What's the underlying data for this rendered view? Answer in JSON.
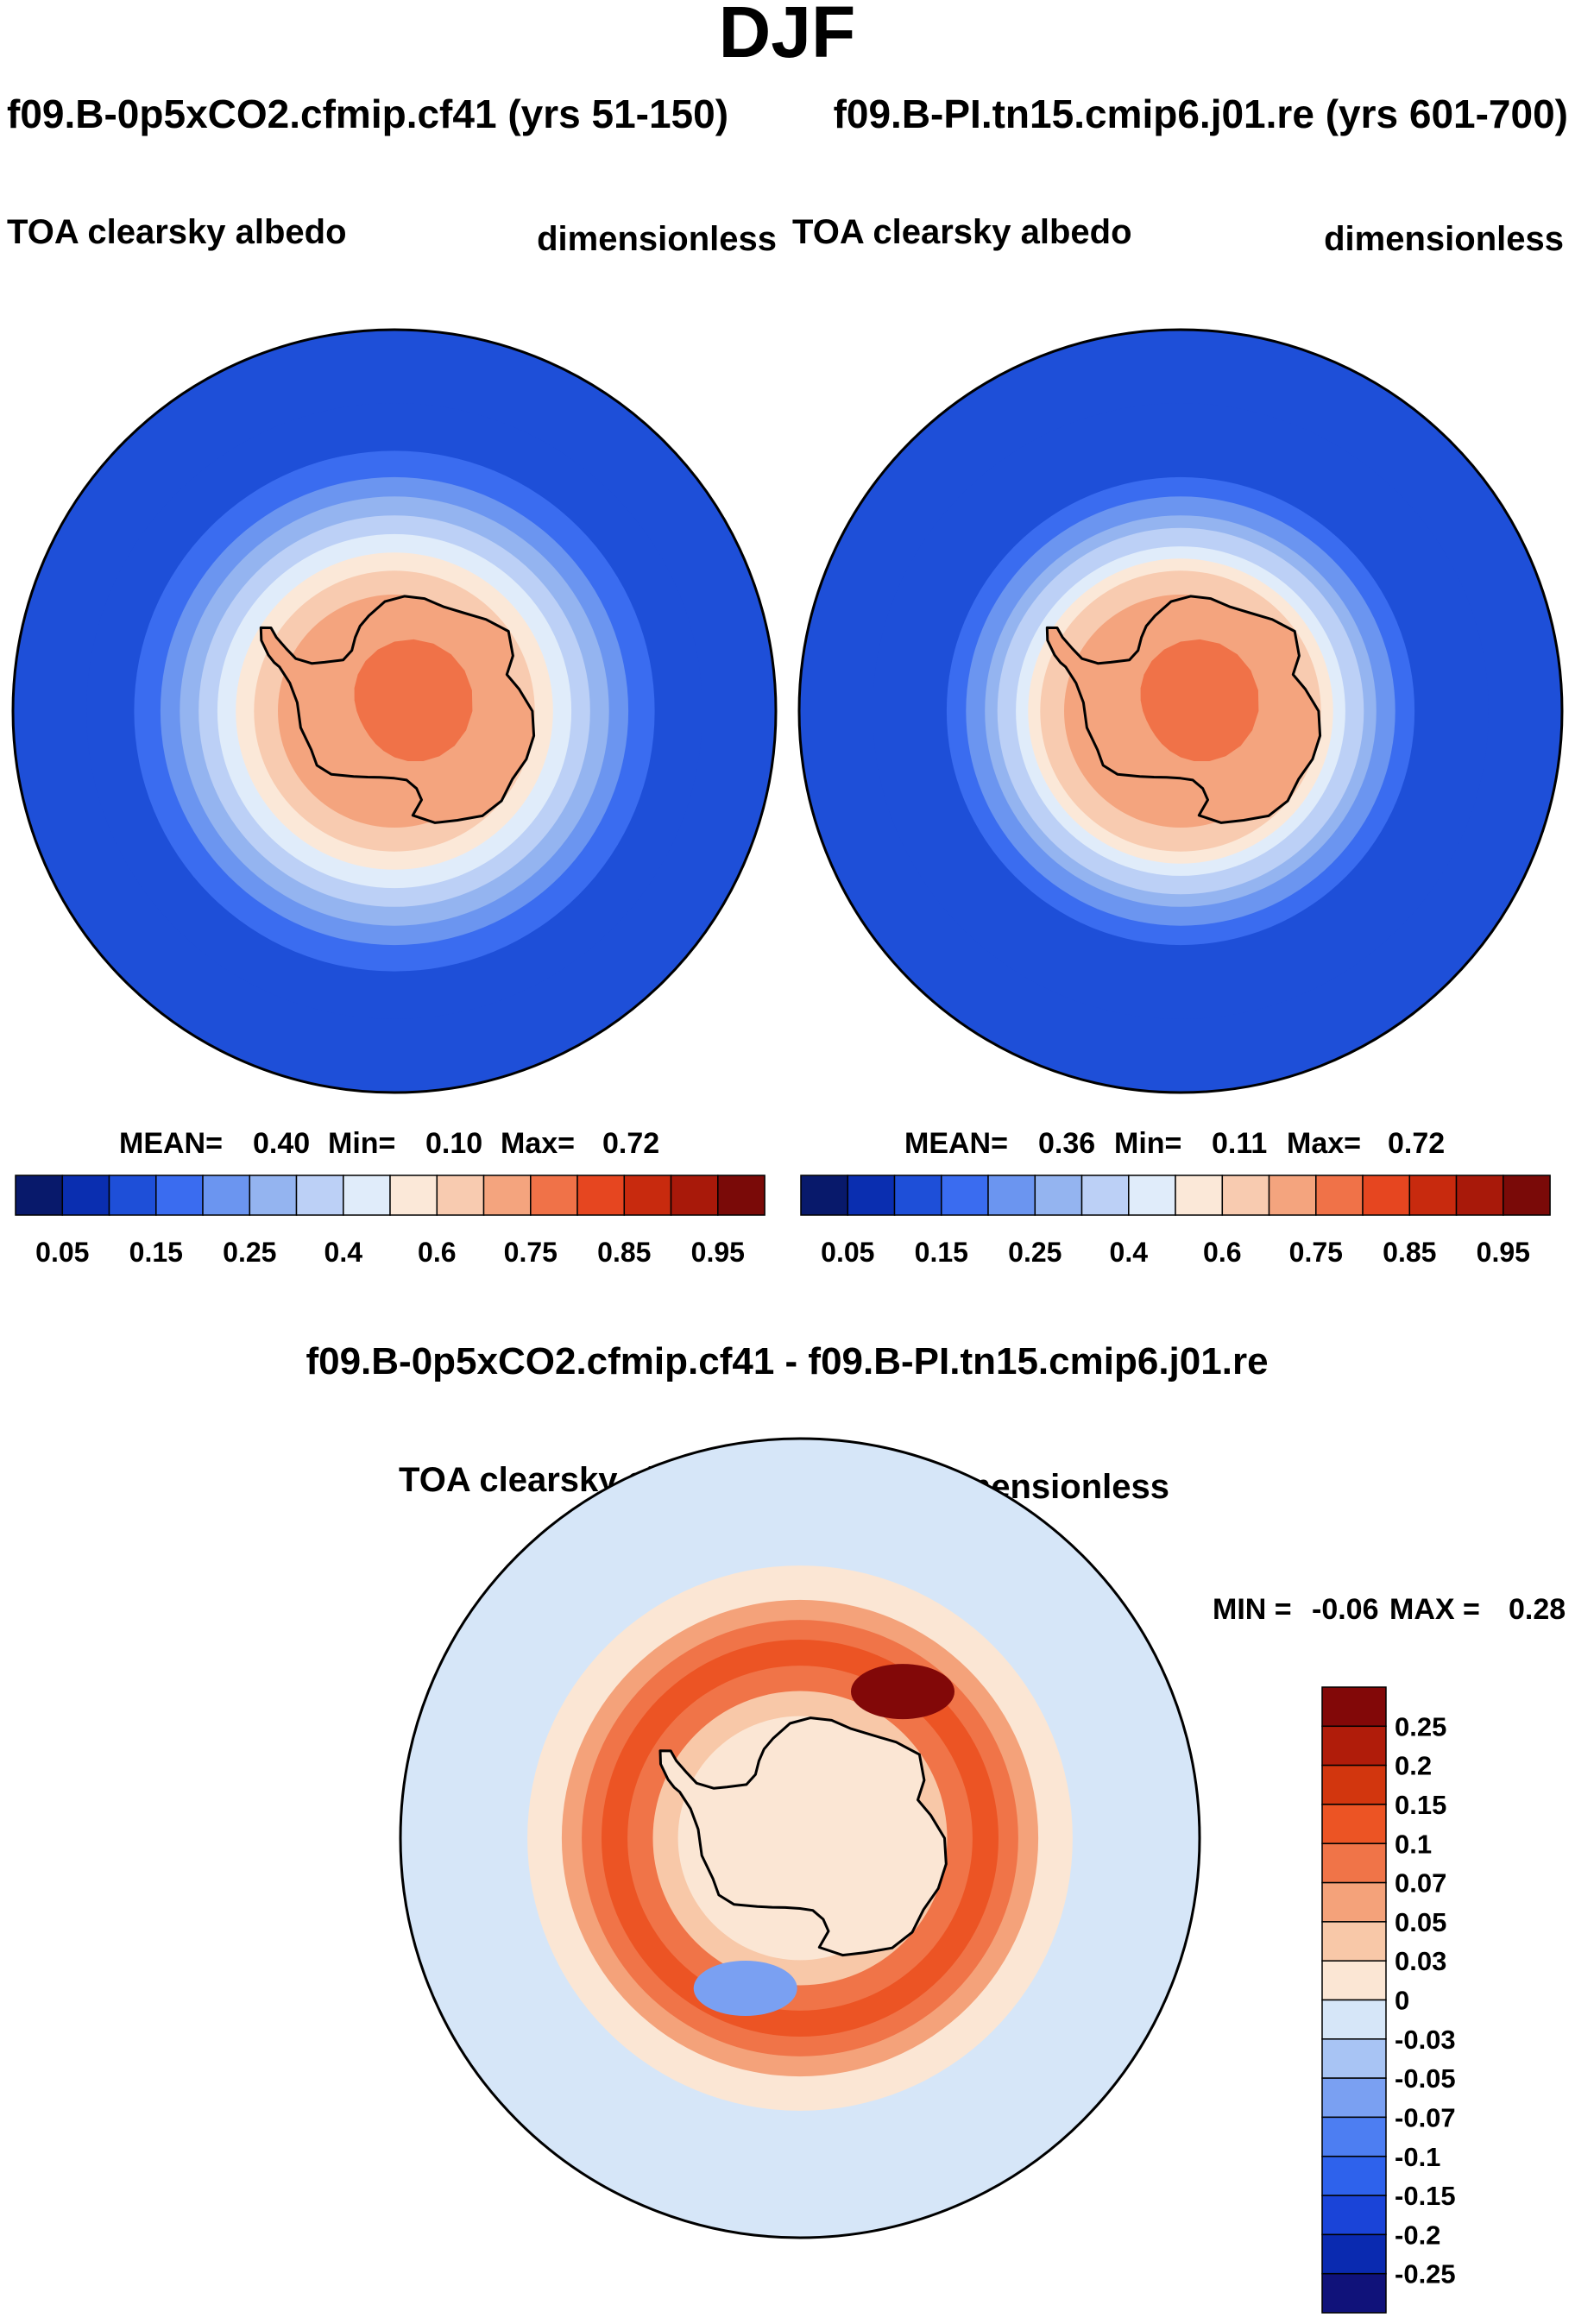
{
  "figure": {
    "title": "DJF",
    "header_left": "f09.B-0p5xCO2.cfmip.cf41 (yrs 51-150)",
    "header_right": "f09.B-PI.tn15.cmip6.j01.re (yrs 601-700)",
    "diff_title": "f09.B-0p5xCO2.cfmip.cf41 - f09.B-PI.tn15.cmip6.j01.re"
  },
  "colors": {
    "full_field": [
      "#08196b",
      "#0a2eb0",
      "#1e4fd8",
      "#3a6cf0",
      "#6b95f0",
      "#94b4f0",
      "#bcd0f6",
      "#e0ecfa",
      "#fbe8d8",
      "#f8cbb0",
      "#f4a47e",
      "#f07248",
      "#e64620",
      "#c82a0e",
      "#a8190a",
      "#7a0a08"
    ],
    "difference": [
      "#10127a",
      "#0a2ab0",
      "#1a44d8",
      "#2e62ec",
      "#4d7ef2",
      "#7aa0f2",
      "#a8c4f4",
      "#d6e6f8",
      "#fbe6d4",
      "#f8c8a8",
      "#f4a27a",
      "#f07448",
      "#ec5424",
      "#d2360e",
      "#b01c0a",
      "#820808"
    ]
  },
  "chart_data": [
    {
      "type": "heatmap",
      "name": "panel-0p5xCO2",
      "title": "f09.B-0p5xCO2.cfmip.cf41 (yrs 51-150)",
      "variable": "TOA clearsky albedo",
      "units": "dimensionless",
      "projection": "south polar stereographic",
      "stats": {
        "mean_label": "MEAN=",
        "mean": "0.40",
        "min_label": "Min=",
        "min": "0.10",
        "max_label": "Max=",
        "max": "0.72"
      },
      "levels": [
        0.05,
        0.1,
        0.15,
        0.2,
        0.25,
        0.3,
        0.35,
        0.4,
        0.5,
        0.6,
        0.7,
        0.75,
        0.8,
        0.85,
        0.9,
        0.95
      ],
      "tick_labels": [
        "0.05",
        "0.15",
        "0.25",
        "0.4",
        "0.6",
        "0.75",
        "0.85",
        "0.95"
      ],
      "bands": [
        {
          "lat": -40,
          "value": 0.12
        },
        {
          "lat": -47,
          "value": 0.17
        },
        {
          "lat": -51,
          "value": 0.22
        },
        {
          "lat": -54,
          "value": 0.27
        },
        {
          "lat": -57,
          "value": 0.32
        },
        {
          "lat": -60,
          "value": 0.37
        },
        {
          "lat": -63,
          "value": 0.45
        },
        {
          "lat": -66,
          "value": 0.55
        },
        {
          "lat": -70,
          "value": 0.62
        }
      ]
    },
    {
      "type": "heatmap",
      "name": "panel-PI",
      "title": "f09.B-PI.tn15.cmip6.j01.re (yrs 601-700)",
      "variable": "TOA clearsky albedo",
      "units": "dimensionless",
      "projection": "south polar stereographic",
      "stats": {
        "mean_label": "MEAN=",
        "mean": "0.36",
        "min_label": "Min=",
        "min": "0.11",
        "max_label": "Max=",
        "max": "0.72"
      },
      "levels": [
        0.05,
        0.1,
        0.15,
        0.2,
        0.25,
        0.3,
        0.35,
        0.4,
        0.5,
        0.6,
        0.7,
        0.75,
        0.8,
        0.85,
        0.9,
        0.95
      ],
      "tick_labels": [
        "0.05",
        "0.15",
        "0.25",
        "0.4",
        "0.6",
        "0.75",
        "0.85",
        "0.95"
      ],
      "bands": [
        {
          "lat": -40,
          "value": 0.12
        },
        {
          "lat": -51,
          "value": 0.17
        },
        {
          "lat": -54,
          "value": 0.22
        },
        {
          "lat": -57,
          "value": 0.27
        },
        {
          "lat": -59,
          "value": 0.32
        },
        {
          "lat": -62,
          "value": 0.37
        },
        {
          "lat": -64,
          "value": 0.45
        },
        {
          "lat": -66,
          "value": 0.55
        },
        {
          "lat": -70,
          "value": 0.62
        }
      ]
    },
    {
      "type": "heatmap",
      "name": "panel-difference",
      "title": "f09.B-0p5xCO2.cfmip.cf41 - f09.B-PI.tn15.cmip6.j01.re",
      "variable": "TOA clearsky albedo",
      "units": "dimensionless",
      "projection": "south polar stereographic",
      "stats": {
        "min_label": "MIN =",
        "min": "-0.06",
        "max_label": "MAX =",
        "max": "0.28"
      },
      "tick_labels": [
        "0.25",
        "0.2",
        "0.15",
        "0.1",
        "0.07",
        "0.05",
        "0.03",
        "0",
        "-0.03",
        "-0.05",
        "-0.07",
        "-0.1",
        "-0.15",
        "-0.2",
        "-0.25"
      ],
      "bands": [
        {
          "lat": -40,
          "value": -0.02
        },
        {
          "lat": -47,
          "value": 0.02
        },
        {
          "lat": -52,
          "value": 0.06
        },
        {
          "lat": -55,
          "value": 0.09
        },
        {
          "lat": -58,
          "value": 0.12
        },
        {
          "lat": -62,
          "value": 0.09
        },
        {
          "lat": -66,
          "value": 0.04
        },
        {
          "lat": -70,
          "value": 0.02
        }
      ],
      "features": [
        {
          "kind": "max",
          "lon": 35,
          "lat": -61,
          "value": 0.28
        },
        {
          "kind": "min",
          "lon": -160,
          "lat": -64,
          "value": -0.06
        }
      ]
    }
  ],
  "coastline": [
    [
      -58,
      -63.2
    ],
    [
      -62,
      -64.3
    ],
    [
      -66,
      -66.4
    ],
    [
      -68,
      -67.8
    ],
    [
      -69,
      -68.9
    ],
    [
      -75,
      -71.4
    ],
    [
      -85,
      -73.2
    ],
    [
      -100,
      -73.6
    ],
    [
      -115,
      -74.2
    ],
    [
      -125,
      -73.7
    ],
    [
      -135,
      -74.6
    ],
    [
      -148,
      -76.7
    ],
    [
      -158,
      -77.7
    ],
    [
      -168,
      -78.3
    ],
    [
      -180,
      -78.4
    ],
    [
      170,
      -77.9
    ],
    [
      164,
      -76.1
    ],
    [
      163,
      -74
    ],
    [
      170,
      -71.8
    ],
    [
      160,
      -69.6
    ],
    [
      150,
      -68.4
    ],
    [
      140,
      -66.6
    ],
    [
      130,
      -66.1
    ],
    [
      120,
      -66.7
    ],
    [
      110,
      -66
    ],
    [
      100,
      -65.8
    ],
    [
      90,
      -66.4
    ],
    [
      80,
      -68.3
    ],
    [
      72,
      -69.7
    ],
    [
      65,
      -67.6
    ],
    [
      55,
      -66.2
    ],
    [
      45,
      -67.8
    ],
    [
      35,
      -69.4
    ],
    [
      25,
      -70.2
    ],
    [
      15,
      -70
    ],
    [
      5,
      -70.2
    ],
    [
      -5,
      -71.1
    ],
    [
      -15,
      -73
    ],
    [
      -22,
      -74.2
    ],
    [
      -28,
      -75.6
    ],
    [
      -35,
      -77.2
    ],
    [
      -45,
      -77.5
    ],
    [
      -55,
      -75.3
    ],
    [
      -60,
      -73.6
    ],
    [
      -62,
      -70.8
    ],
    [
      -60,
      -68.6
    ],
    [
      -58,
      -66.2
    ],
    [
      -56,
      -64.6
    ]
  ]
}
